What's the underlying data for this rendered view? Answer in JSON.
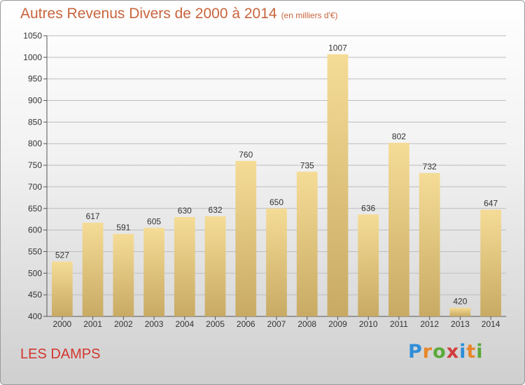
{
  "title": "Autres Revenus Divers de 2000 à 2014",
  "subtitle": "(en milliers d'€)",
  "commune": "LES DAMPS",
  "brand": "Proxiti",
  "colors": {
    "title": "#c8643c",
    "commune": "#d2362e",
    "bar_top": "#f5dc96",
    "bar_bottom": "#c8aa64",
    "grid": "#bdbdbd"
  },
  "chart_data": {
    "type": "bar",
    "title": "Autres Revenus Divers de 2000 à 2014",
    "xlabel": "",
    "ylabel": "",
    "categories": [
      "2000",
      "2001",
      "2002",
      "2003",
      "2004",
      "2005",
      "2006",
      "2007",
      "2008",
      "2009",
      "2010",
      "2011",
      "2012",
      "2013",
      "2014"
    ],
    "values": [
      527,
      617,
      591,
      605,
      630,
      632,
      760,
      650,
      735,
      1007,
      636,
      802,
      732,
      420,
      647
    ],
    "ylim": [
      400,
      1050
    ],
    "yticks": [
      400,
      450,
      500,
      550,
      600,
      650,
      700,
      750,
      800,
      850,
      900,
      950,
      1000,
      1050
    ],
    "grid": true,
    "legend": "none"
  }
}
